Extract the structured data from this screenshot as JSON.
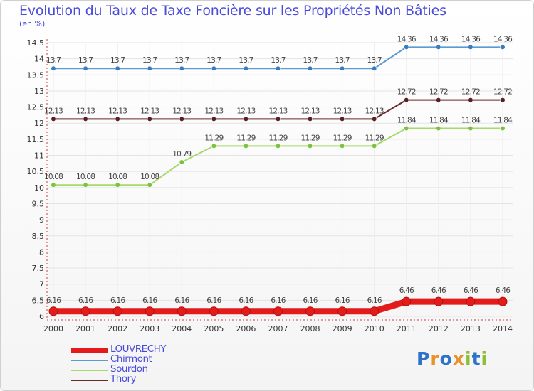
{
  "chart_data": {
    "type": "line",
    "title": "Evolution du Taux de Taxe Foncière sur les Propriétés Non Bâties",
    "ylabel": "(en %)",
    "xlabel": "",
    "ylim": [
      6,
      14.5
    ],
    "yticks": [
      "6",
      "6.5",
      "7",
      "7.5",
      "8",
      "8.5",
      "9",
      "9.5",
      "10",
      "10.5",
      "11",
      "11.5",
      "12",
      "12.5",
      "13",
      "13.5",
      "14",
      "14.5"
    ],
    "categories": [
      "2000",
      "2001",
      "2002",
      "2003",
      "2004",
      "2005",
      "2006",
      "2007",
      "2008",
      "2009",
      "2010",
      "2011",
      "2012",
      "2013",
      "2014"
    ],
    "series": [
      {
        "name": "Chirmont",
        "color": "#5b9bd5",
        "marker": "#3b7cc0",
        "values": [
          13.7,
          13.7,
          13.7,
          13.7,
          13.7,
          13.7,
          13.7,
          13.7,
          13.7,
          13.7,
          13.7,
          14.36,
          14.36,
          14.36,
          14.36
        ],
        "labels": [
          "13.7",
          "13.7",
          "13.7",
          "13.7",
          "13.7",
          "13.7",
          "13.7",
          "13.7",
          "13.7",
          "13.7",
          "13.7",
          "14.36",
          "14.36",
          "14.36",
          "14.36"
        ]
      },
      {
        "name": "Thory",
        "color": "#6b2a2a",
        "marker": "#5a1f1f",
        "values": [
          12.13,
          12.13,
          12.13,
          12.13,
          12.13,
          12.13,
          12.13,
          12.13,
          12.13,
          12.13,
          12.13,
          12.72,
          12.72,
          12.72,
          12.72
        ],
        "labels": [
          "12.13",
          "12.13",
          "12.13",
          "12.13",
          "12.13",
          "12.13",
          "12.13",
          "12.13",
          "12.13",
          "12.13",
          "12.13",
          "12.72",
          "12.72",
          "12.72",
          "12.72"
        ]
      },
      {
        "name": "Sourdon",
        "color": "#a6d96a",
        "marker": "#7cc23e",
        "values": [
          10.08,
          10.08,
          10.08,
          10.08,
          10.79,
          11.29,
          11.29,
          11.29,
          11.29,
          11.29,
          11.29,
          11.84,
          11.84,
          11.84,
          11.84
        ],
        "labels": [
          "10.08",
          "10.08",
          "10.08",
          "10.08",
          "10.79",
          "11.29",
          "11.29",
          "11.29",
          "11.29",
          "11.29",
          "11.29",
          "11.84",
          "11.84",
          "11.84",
          "11.84"
        ]
      },
      {
        "name": "LOUVRECHY",
        "color": "#e31b1b",
        "marker": "#e31b1b",
        "values": [
          6.16,
          6.16,
          6.16,
          6.16,
          6.16,
          6.16,
          6.16,
          6.16,
          6.16,
          6.16,
          6.16,
          6.46,
          6.46,
          6.46,
          6.46
        ],
        "labels": [
          "6.16",
          "6.16",
          "6.16",
          "6.16",
          "6.16",
          "6.16",
          "6.16",
          "6.16",
          "6.16",
          "6.16",
          "6.16",
          "6.46",
          "6.46",
          "6.46",
          "6.46"
        ]
      }
    ],
    "legend": [
      {
        "name": "LOUVRECHY",
        "color": "#e31b1b"
      },
      {
        "name": "Chirmont",
        "color": "#5b9bd5"
      },
      {
        "name": "Sourdon",
        "color": "#a6d96a"
      },
      {
        "name": "Thory",
        "color": "#6b2a2a"
      }
    ]
  },
  "branding": {
    "logo_text": "Proxiti",
    "logo_letters": [
      "P",
      "r",
      "o",
      "x",
      "i",
      "t",
      "i"
    ]
  }
}
